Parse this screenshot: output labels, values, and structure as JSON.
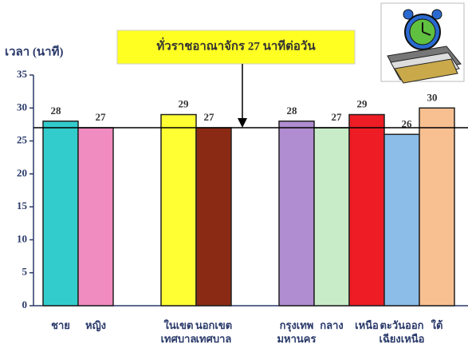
{
  "chart_data": {
    "type": "bar",
    "y_label": "เวลา (นาที)",
    "annotation": "ทั่วราชอาณาจักร 27 นาทีต่อวัน",
    "reference_value": 27,
    "categories": [
      "ชาย",
      "หญิง",
      null,
      "ในเขต\nเทศบาล",
      "นอกเขต\nเทศบาล",
      null,
      "กรุงเทพ\nมหานคร",
      "กลาง",
      "เหนือ",
      "ตะวันออก\nเฉียงเหนือ",
      "ใต้"
    ],
    "values": [
      28,
      27,
      null,
      29,
      27,
      null,
      28,
      27,
      29,
      26,
      30
    ],
    "colors": [
      "#33cccc",
      "#f08cc0",
      null,
      "#ffff33",
      "#8b2a14",
      null,
      "#b08cd0",
      "#c8ecc8",
      "#ee1c24",
      "#8cbce8",
      "#f8c090"
    ],
    "ylim": [
      0,
      35
    ],
    "yticks": [
      0,
      5,
      10,
      15,
      20,
      25,
      30,
      35
    ]
  }
}
